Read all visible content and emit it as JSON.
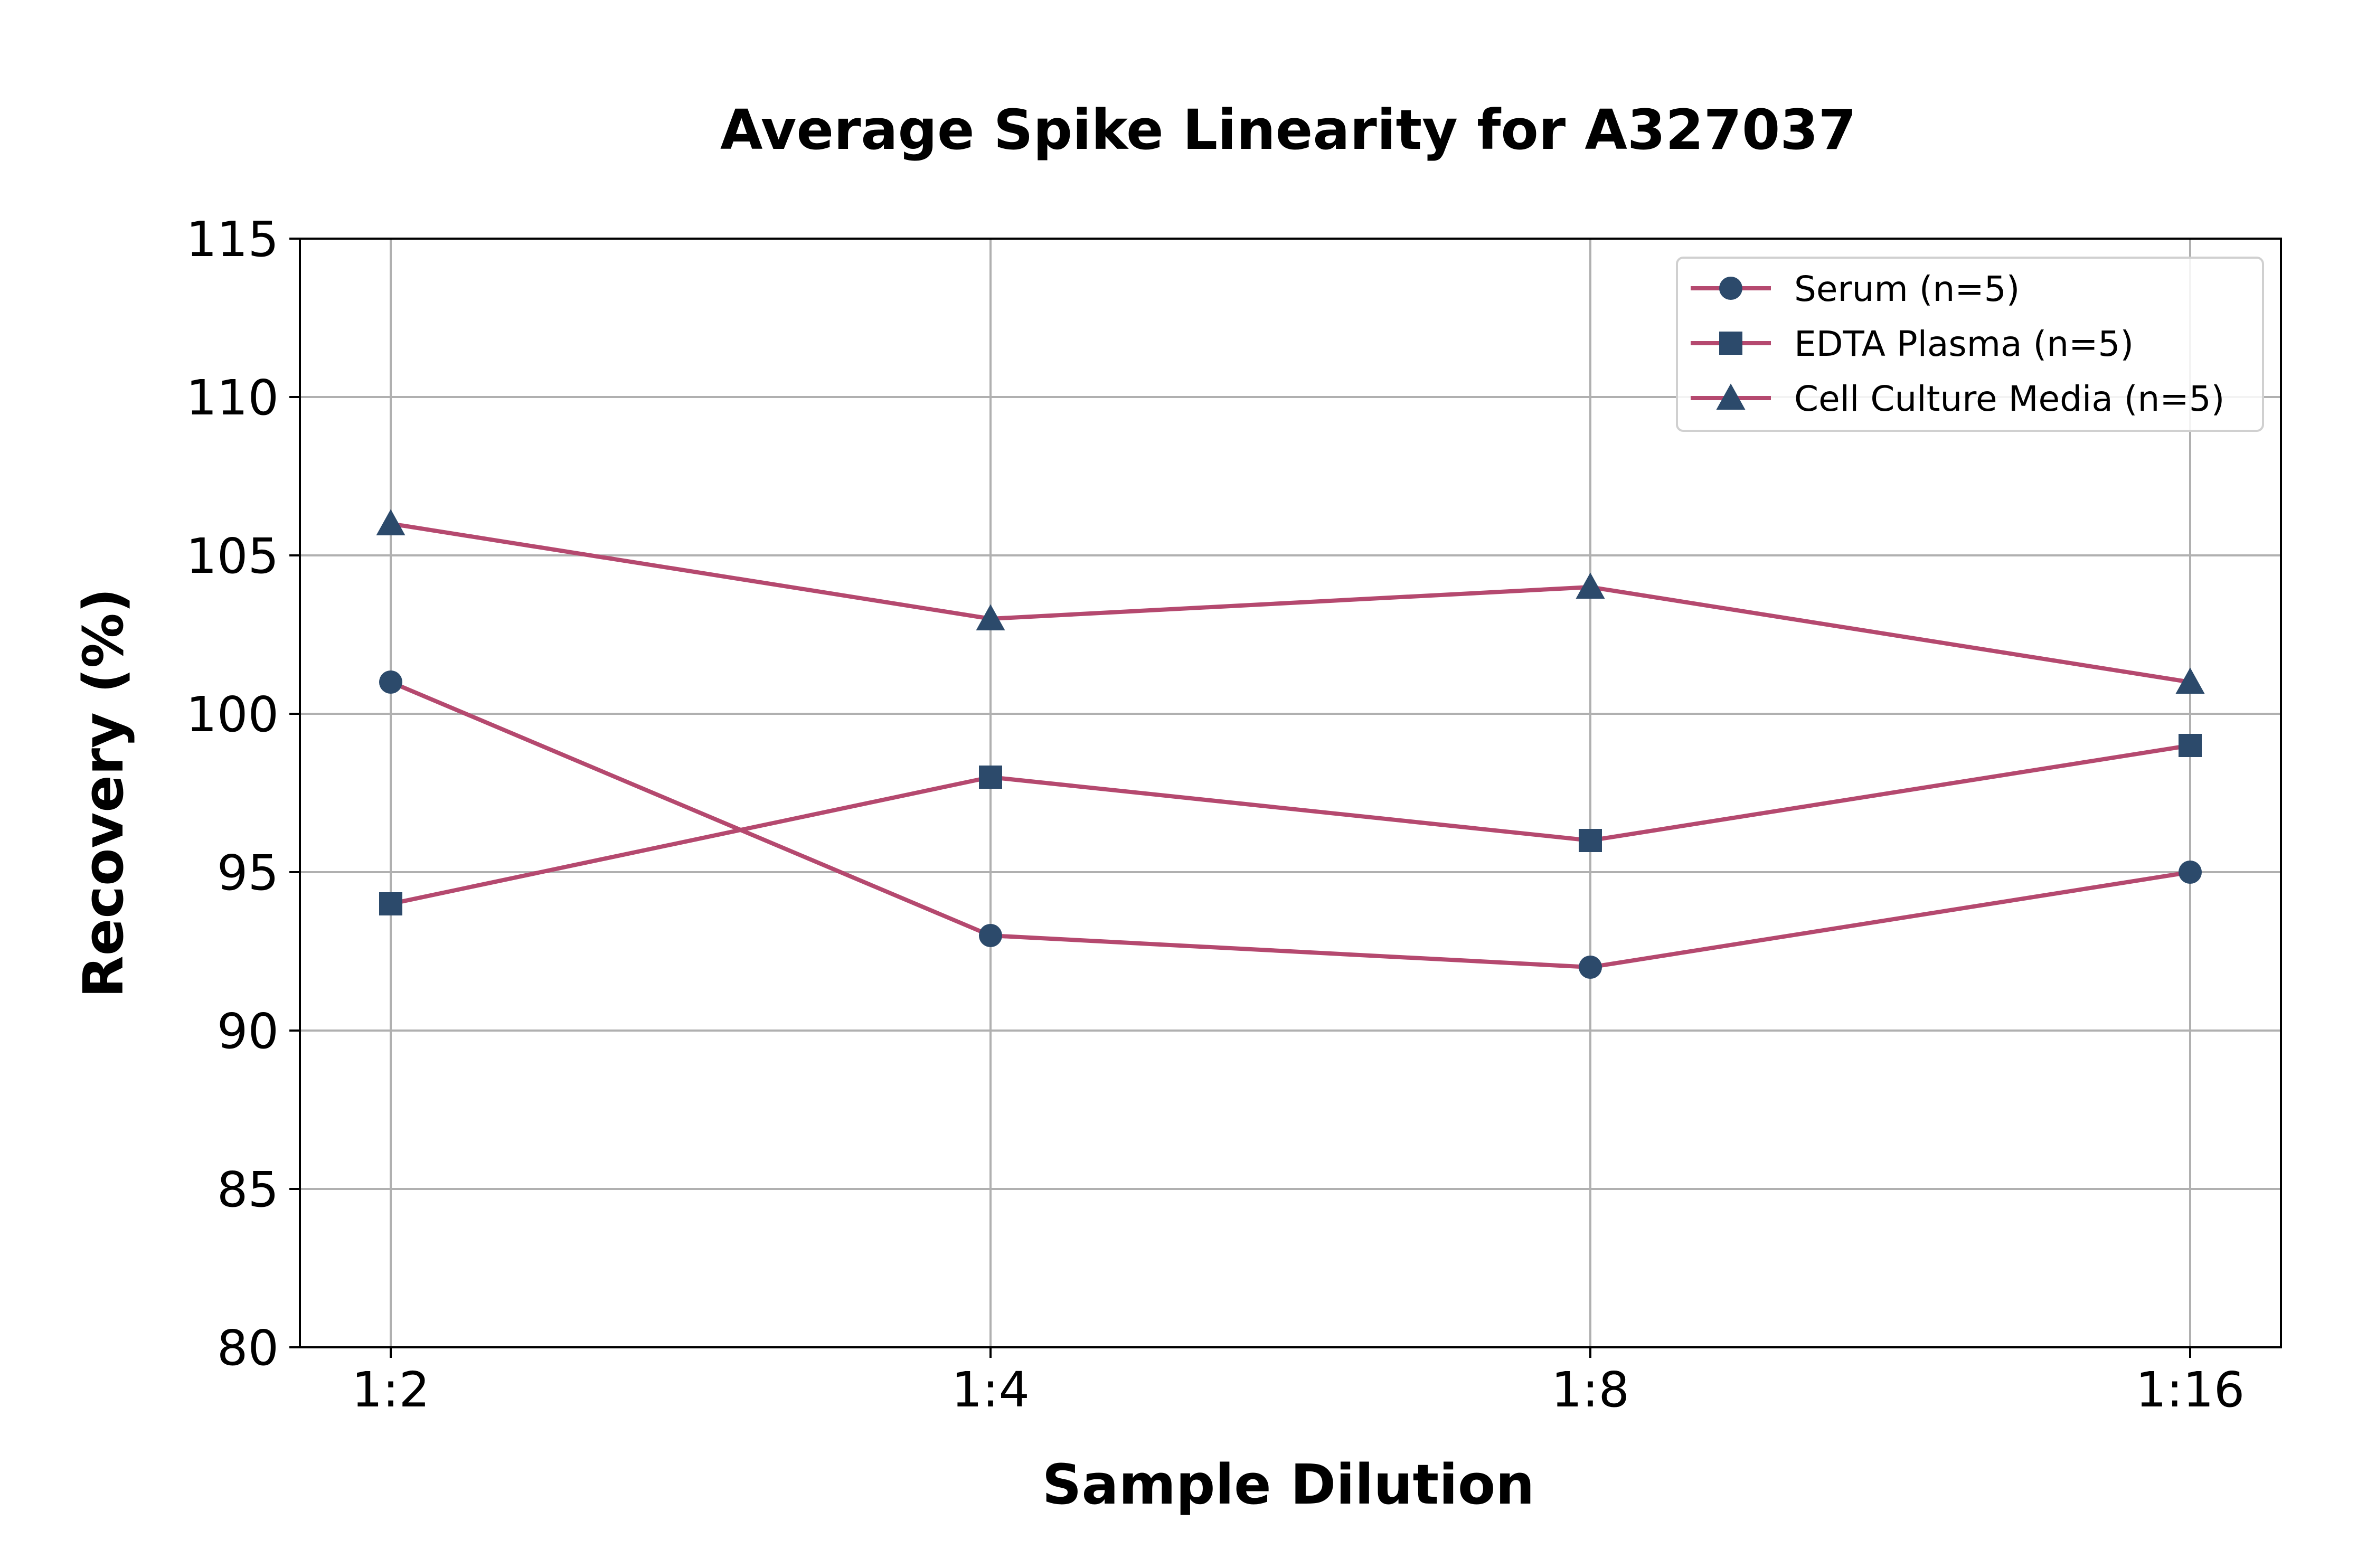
{
  "chart_data": {
    "type": "line",
    "title": "Average Spike Linearity for A327037",
    "xlabel": "Sample Dilution",
    "ylabel": "Recovery (%)",
    "categories": [
      "1:2",
      "1:4",
      "1:8",
      "1:16"
    ],
    "ylim": [
      80,
      115
    ],
    "yticks": [
      80,
      85,
      90,
      95,
      100,
      105,
      110,
      115
    ],
    "grid": true,
    "legend_position": "top-right",
    "series": [
      {
        "name": "Serum (n=5)",
        "marker": "circle",
        "values": [
          101,
          93,
          92,
          95
        ]
      },
      {
        "name": "EDTA Plasma (n=5)",
        "marker": "square",
        "values": [
          94,
          98,
          96,
          99
        ]
      },
      {
        "name": "Cell Culture Media (n=5)",
        "marker": "triangle",
        "values": [
          106,
          103,
          104,
          101
        ]
      }
    ],
    "colors": {
      "line": "#b5496f",
      "marker": "#2c4a6b"
    }
  }
}
